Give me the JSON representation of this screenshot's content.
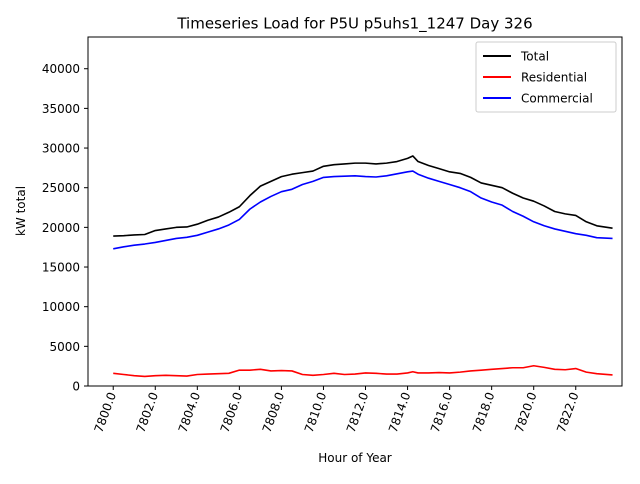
{
  "chart_data": {
    "type": "line",
    "title": "Timeseries Load for P5U p5uhs1_1247  Day 326",
    "xlabel": "Hour of Year",
    "ylabel": "kW total",
    "xlim": [
      7798.8,
      7824.2
    ],
    "ylim": [
      0,
      44000
    ],
    "xticks": [
      7800,
      7802,
      7804,
      7806,
      7808,
      7810,
      7812,
      7814,
      7816,
      7818,
      7820,
      7822
    ],
    "xtick_labels": [
      "7800.0",
      "7802.0",
      "7804.0",
      "7806.0",
      "7808.0",
      "7810.0",
      "7812.0",
      "7814.0",
      "7816.0",
      "7818.0",
      "7820.0",
      "7822.0"
    ],
    "yticks": [
      0,
      5000,
      10000,
      15000,
      20000,
      25000,
      30000,
      35000,
      40000
    ],
    "ytick_labels": [
      "0",
      "5000",
      "10000",
      "15000",
      "20000",
      "25000",
      "30000",
      "35000",
      "40000"
    ],
    "legend_position": "top-right",
    "series": [
      {
        "name": "Total",
        "color": "#000000",
        "x": [
          7800,
          7800.5,
          7801,
          7801.5,
          7802,
          7802.5,
          7803,
          7803.5,
          7804,
          7804.5,
          7805,
          7805.5,
          7806,
          7806.5,
          7807,
          7807.5,
          7808,
          7808.5,
          7809,
          7809.5,
          7810,
          7810.5,
          7811,
          7811.5,
          7812,
          7812.5,
          7813,
          7813.5,
          7814,
          7814.25,
          7814.5,
          7815,
          7815.5,
          7816,
          7816.5,
          7817,
          7817.5,
          7818,
          7818.5,
          7819,
          7819.5,
          7820,
          7820.5,
          7821,
          7821.5,
          7822,
          7822.5,
          7823,
          7823.75
        ],
        "values": [
          18900,
          18950,
          19050,
          19100,
          19600,
          19800,
          20000,
          20050,
          20400,
          20900,
          21300,
          21900,
          22600,
          24000,
          25200,
          25800,
          26400,
          26700,
          26900,
          27100,
          27700,
          27900,
          28000,
          28100,
          28100,
          28000,
          28100,
          28300,
          28700,
          29000,
          28300,
          27800,
          27400,
          27000,
          26800,
          26300,
          25600,
          25300,
          25000,
          24300,
          23700,
          23300,
          22700,
          22000,
          21700,
          21500,
          20700,
          20200,
          19900
        ]
      },
      {
        "name": "Residential",
        "color": "#ff0000",
        "x": [
          7800,
          7800.5,
          7801,
          7801.5,
          7802,
          7802.5,
          7803,
          7803.5,
          7804,
          7804.5,
          7805,
          7805.5,
          7806,
          7806.5,
          7807,
          7807.5,
          7808,
          7808.5,
          7809,
          7809.5,
          7810,
          7810.5,
          7811,
          7811.5,
          7812,
          7812.5,
          7813,
          7813.5,
          7814,
          7814.25,
          7814.5,
          7815,
          7815.5,
          7816,
          7816.5,
          7817,
          7817.5,
          7818,
          7818.5,
          7819,
          7819.5,
          7820,
          7820.5,
          7821,
          7821.5,
          7822,
          7822.5,
          7823,
          7823.75
        ],
        "values": [
          1600,
          1450,
          1300,
          1200,
          1300,
          1350,
          1300,
          1250,
          1450,
          1500,
          1550,
          1600,
          2000,
          2000,
          2100,
          1900,
          1950,
          1900,
          1450,
          1350,
          1450,
          1600,
          1450,
          1500,
          1650,
          1600,
          1500,
          1500,
          1650,
          1800,
          1650,
          1650,
          1700,
          1650,
          1750,
          1900,
          2000,
          2100,
          2200,
          2300,
          2300,
          2550,
          2350,
          2100,
          2050,
          2200,
          1750,
          1550,
          1400
        ]
      },
      {
        "name": "Commercial",
        "color": "#0000ff",
        "x": [
          7800,
          7800.5,
          7801,
          7801.5,
          7802,
          7802.5,
          7803,
          7803.5,
          7804,
          7804.5,
          7805,
          7805.5,
          7806,
          7806.5,
          7807,
          7807.5,
          7808,
          7808.5,
          7809,
          7809.5,
          7810,
          7810.5,
          7811,
          7811.5,
          7812,
          7812.5,
          7813,
          7813.5,
          7814,
          7814.25,
          7814.5,
          7815,
          7815.5,
          7816,
          7816.5,
          7817,
          7817.5,
          7818,
          7818.5,
          7819,
          7819.5,
          7820,
          7820.5,
          7821,
          7821.5,
          7822,
          7822.5,
          7823,
          7823.75
        ],
        "values": [
          17300,
          17550,
          17750,
          17900,
          18100,
          18350,
          18600,
          18750,
          19000,
          19400,
          19800,
          20300,
          21000,
          22300,
          23200,
          23900,
          24500,
          24800,
          25400,
          25800,
          26300,
          26400,
          26450,
          26500,
          26400,
          26350,
          26500,
          26750,
          27000,
          27100,
          26700,
          26200,
          25800,
          25400,
          25000,
          24500,
          23700,
          23200,
          22800,
          22000,
          21400,
          20700,
          20200,
          19800,
          19500,
          19200,
          19000,
          18700,
          18600
        ]
      }
    ]
  }
}
